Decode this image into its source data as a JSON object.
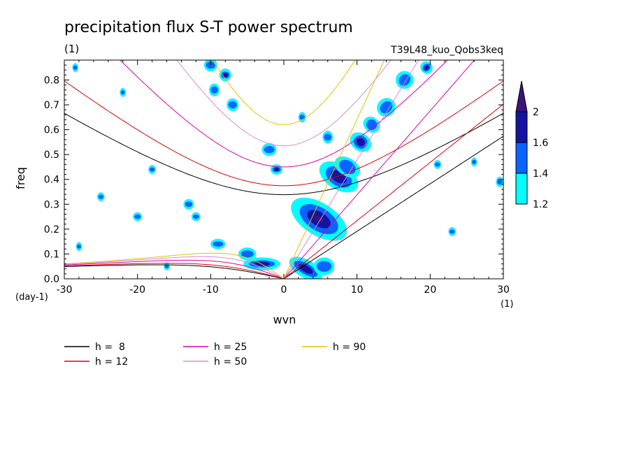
{
  "chart_data": {
    "type": "line",
    "title": "precipitation flux S-T power spectrum",
    "units_label": "(1)",
    "experiment": "T39L48_kuo_Qobs3keq",
    "xlabel": "wvn",
    "ylabel": "freq",
    "x_unit": "(1)",
    "y_unit": "(day-1)",
    "xlim": [
      -30,
      30
    ],
    "ylim": [
      0,
      0.88
    ],
    "x_ticks": [
      -30,
      -20,
      -10,
      0,
      10,
      20,
      30
    ],
    "x_tick_labels": [
      "-30",
      "-20",
      "-10",
      "0",
      "10",
      "20",
      "30"
    ],
    "y_ticks": [
      0,
      0.1,
      0.2,
      0.3,
      0.4,
      0.5,
      0.6,
      0.7,
      0.8
    ],
    "y_tick_labels": [
      "0.0",
      "0.1",
      "0.2",
      "0.3",
      "0.4",
      "0.5",
      "0.6",
      "0.7",
      "0.8"
    ],
    "grid": false,
    "legend_placement": "bottom",
    "series": [
      {
        "name": "h =  8",
        "h": 8,
        "color": "#000000"
      },
      {
        "name": "h = 12",
        "h": 12,
        "color": "#e00000"
      },
      {
        "name": "h = 25",
        "h": 25,
        "color": "#d800b0"
      },
      {
        "name": "h = 50",
        "h": 50,
        "color": "#d88ad8"
      },
      {
        "name": "h = 90",
        "h": 90,
        "color": "#e8c000"
      }
    ],
    "colorbar": {
      "levels": [
        "1.2",
        "1.4",
        "1.6",
        "2"
      ],
      "colors": [
        "#00ffff",
        "#0a64ff",
        "#1414a0",
        "#3c147c"
      ]
    },
    "contour_patches": [
      {
        "x": 4.8,
        "y": 0.24,
        "rx": 2.2,
        "ry": 0.12,
        "rot": -58,
        "level": 3
      },
      {
        "x": 7.5,
        "y": 0.41,
        "rx": 1.7,
        "ry": 0.08,
        "rot": -58,
        "level": 2
      },
      {
        "x": 8.7,
        "y": 0.45,
        "rx": 1.2,
        "ry": 0.05,
        "rot": -58,
        "level": 1
      },
      {
        "x": 10.5,
        "y": 0.55,
        "rx": 1.2,
        "ry": 0.04,
        "rot": -55,
        "level": 2
      },
      {
        "x": 12,
        "y": 0.62,
        "rx": 1.0,
        "ry": 0.03,
        "rot": -50,
        "level": 1
      },
      {
        "x": 14,
        "y": 0.69,
        "rx": 1.3,
        "ry": 0.03,
        "rot": -45,
        "level": 1
      },
      {
        "x": 16.5,
        "y": 0.8,
        "rx": 1.2,
        "ry": 0.03,
        "rot": -45,
        "level": 1
      },
      {
        "x": 19.5,
        "y": 0.85,
        "rx": 0.8,
        "ry": 0.02,
        "rot": -45,
        "level": 2
      },
      {
        "x": 3,
        "y": 0.04,
        "rx": 2.5,
        "ry": 0.03,
        "rot": 30,
        "level": 2
      },
      {
        "x": 5.5,
        "y": 0.05,
        "rx": 1.4,
        "ry": 0.03,
        "rot": 0,
        "level": 1
      },
      {
        "x": -3,
        "y": 0.06,
        "rx": 2.5,
        "ry": 0.02,
        "rot": 0,
        "level": 2
      },
      {
        "x": -5,
        "y": 0.1,
        "rx": 1.2,
        "ry": 0.02,
        "rot": 0,
        "level": 1
      },
      {
        "x": -9,
        "y": 0.14,
        "rx": 1.0,
        "ry": 0.015,
        "rot": 0,
        "level": 1
      },
      {
        "x": -10,
        "y": 0.86,
        "rx": 0.9,
        "ry": 0.02,
        "rot": 0,
        "level": 1
      },
      {
        "x": -8,
        "y": 0.82,
        "rx": 0.8,
        "ry": 0.02,
        "rot": 0,
        "level": 2
      },
      {
        "x": -7,
        "y": 0.7,
        "rx": 0.8,
        "ry": 0.02,
        "rot": 0,
        "level": 1
      },
      {
        "x": -9.5,
        "y": 0.76,
        "rx": 0.7,
        "ry": 0.02,
        "rot": 0,
        "level": 1
      },
      {
        "x": -2,
        "y": 0.52,
        "rx": 1.0,
        "ry": 0.02,
        "rot": 0,
        "level": 1
      },
      {
        "x": -1,
        "y": 0.44,
        "rx": 0.8,
        "ry": 0.015,
        "rot": 0,
        "level": 2
      },
      {
        "x": 6,
        "y": 0.57,
        "rx": 0.7,
        "ry": 0.02,
        "rot": 0,
        "level": 1
      },
      {
        "x": 2.5,
        "y": 0.65,
        "rx": 0.5,
        "ry": 0.015,
        "rot": 0,
        "level": 1
      },
      {
        "x": -13,
        "y": 0.3,
        "rx": 0.7,
        "ry": 0.015,
        "rot": 0,
        "level": 1
      },
      {
        "x": -20,
        "y": 0.25,
        "rx": 0.6,
        "ry": 0.012,
        "rot": 0,
        "level": 1
      },
      {
        "x": -25,
        "y": 0.33,
        "rx": 0.5,
        "ry": 0.012,
        "rot": 0,
        "level": 1
      },
      {
        "x": -28,
        "y": 0.13,
        "rx": 0.4,
        "ry": 0.012,
        "rot": 0,
        "level": 1
      },
      {
        "x": -18,
        "y": 0.44,
        "rx": 0.5,
        "ry": 0.012,
        "rot": 0,
        "level": 1
      },
      {
        "x": 21,
        "y": 0.46,
        "rx": 0.5,
        "ry": 0.012,
        "rot": 0,
        "level": 1
      },
      {
        "x": 26,
        "y": 0.47,
        "rx": 0.4,
        "ry": 0.012,
        "rot": 0,
        "level": 1
      },
      {
        "x": 29.5,
        "y": 0.39,
        "rx": 0.5,
        "ry": 0.015,
        "rot": 0,
        "level": 1
      },
      {
        "x": 23,
        "y": 0.19,
        "rx": 0.5,
        "ry": 0.012,
        "rot": 0,
        "level": 1
      },
      {
        "x": -28.5,
        "y": 0.85,
        "rx": 0.4,
        "ry": 0.012,
        "rot": 0,
        "level": 1
      },
      {
        "x": -22,
        "y": 0.75,
        "rx": 0.4,
        "ry": 0.012,
        "rot": 0,
        "level": 1
      },
      {
        "x": -16,
        "y": 0.05,
        "rx": 0.4,
        "ry": 0.01,
        "rot": 0,
        "level": 1
      },
      {
        "x": -12,
        "y": 0.25,
        "rx": 0.6,
        "ry": 0.012,
        "rot": 0,
        "level": 1
      }
    ]
  }
}
